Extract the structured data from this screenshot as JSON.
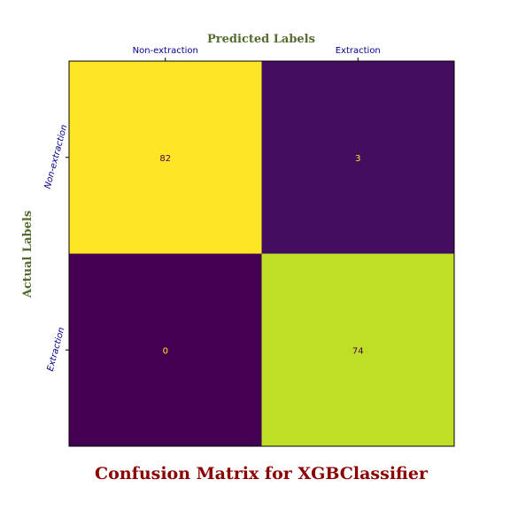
{
  "chart_data": {
    "type": "heatmap",
    "title": "Confusion Matrix for XGBClassifier",
    "xlabel": "Predicted Labels",
    "ylabel": "Actual Labels",
    "x_categories": [
      "Non-extraction",
      "Extraction"
    ],
    "y_categories": [
      "Non-extraction",
      "Extraction"
    ],
    "values": [
      [
        82,
        3
      ],
      [
        0,
        74
      ]
    ],
    "value_labels": [
      [
        "82",
        "3"
      ],
      [
        "0",
        "74"
      ]
    ],
    "colormap": "viridis",
    "vmin": 0,
    "vmax": 82,
    "x_ticks_position": "top",
    "grid": false
  },
  "colors": {
    "axis_title": "#556b2f",
    "tick_label": "#00008b",
    "title": "#8b0000",
    "high_text": "#440154",
    "low_text": "#fde725"
  }
}
